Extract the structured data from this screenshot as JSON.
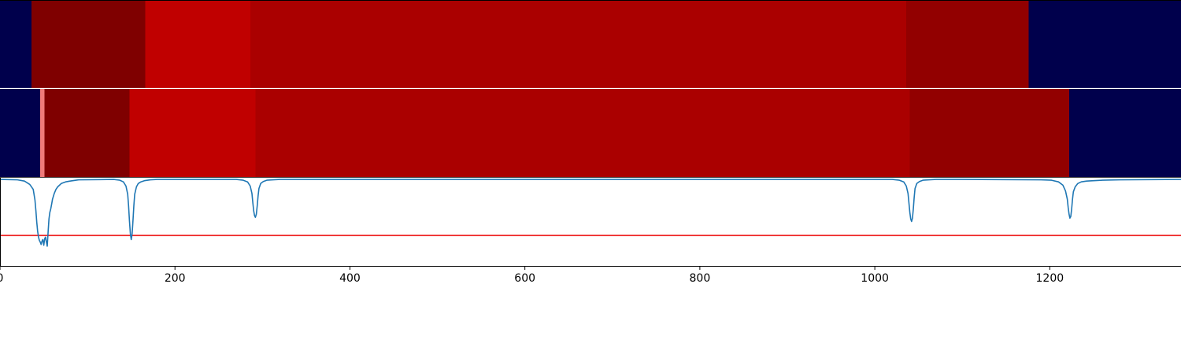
{
  "chart_data": [
    {
      "type": "heatmap",
      "segments": [
        {
          "x0": 0,
          "x1": 36,
          "color": "#00004c"
        },
        {
          "x0": 36,
          "x1": 166,
          "color": "#7f0000"
        },
        {
          "x0": 166,
          "x1": 286,
          "color": "#c00000"
        },
        {
          "x0": 286,
          "x1": 1036,
          "color": "#aa0000"
        },
        {
          "x0": 1036,
          "x1": 1176,
          "color": "#920000"
        },
        {
          "x0": 1176,
          "x1": 1350,
          "color": "#00004c"
        }
      ]
    },
    {
      "type": "heatmap",
      "segments": [
        {
          "x0": 0,
          "x1": 46,
          "color": "#00004c"
        },
        {
          "x0": 46,
          "x1": 51,
          "color": "#ef7b7b"
        },
        {
          "x0": 51,
          "x1": 148,
          "color": "#7f0000"
        },
        {
          "x0": 148,
          "x1": 292,
          "color": "#c00000"
        },
        {
          "x0": 292,
          "x1": 1040,
          "color": "#aa0000"
        },
        {
          "x0": 1040,
          "x1": 1222,
          "color": "#920000"
        },
        {
          "x0": 1222,
          "x1": 1350,
          "color": "#00004c"
        }
      ]
    },
    {
      "type": "line",
      "xlim": [
        0,
        1350
      ],
      "ylim": [
        -1.05,
        0.02
      ],
      "threshold": -0.68,
      "xticks": [
        0,
        200,
        400,
        600,
        800,
        1000,
        1200
      ],
      "xtick_labels": [
        "0",
        "200",
        "400",
        "600",
        "800",
        "1000",
        "1200"
      ],
      "series": [
        {
          "color": "#1f77b4",
          "x": [
            0,
            20,
            28,
            34,
            38,
            40,
            41,
            42,
            43,
            44,
            45,
            46,
            47,
            48,
            49,
            50,
            51,
            52,
            53,
            54,
            55,
            56,
            57,
            58,
            59,
            60,
            62,
            64,
            66,
            70,
            75,
            80,
            90,
            130,
            137,
            141,
            144,
            146,
            147,
            148,
            149,
            150,
            151,
            152,
            153,
            154,
            156,
            158,
            161,
            165,
            172,
            180,
            200,
            270,
            278,
            283,
            286,
            288,
            289,
            290,
            291,
            292,
            293,
            294,
            295,
            296,
            298,
            301,
            305,
            312,
            320,
            340,
            1020,
            1028,
            1033,
            1036,
            1038,
            1039,
            1040,
            1041,
            1042,
            1043,
            1044,
            1045,
            1046,
            1048,
            1051,
            1055,
            1062,
            1070,
            1100,
            1190,
            1202,
            1210,
            1215,
            1218,
            1220,
            1221,
            1222,
            1223,
            1224,
            1225,
            1226,
            1227,
            1229,
            1232,
            1236,
            1242,
            1250,
            1260,
            1280,
            1350
          ],
          "y": [
            0,
            -0.005,
            -0.02,
            -0.06,
            -0.12,
            -0.25,
            -0.38,
            -0.52,
            -0.63,
            -0.7,
            -0.74,
            -0.76,
            -0.79,
            -0.75,
            -0.73,
            -0.8,
            -0.72,
            -0.7,
            -0.76,
            -0.81,
            -0.64,
            -0.48,
            -0.4,
            -0.36,
            -0.3,
            -0.24,
            -0.17,
            -0.12,
            -0.09,
            -0.05,
            -0.03,
            -0.02,
            -0.005,
            0,
            -0.01,
            -0.03,
            -0.08,
            -0.18,
            -0.32,
            -0.5,
            -0.66,
            -0.73,
            -0.66,
            -0.5,
            -0.32,
            -0.18,
            -0.09,
            -0.05,
            -0.03,
            -0.015,
            -0.005,
            0,
            0,
            0,
            -0.01,
            -0.03,
            -0.08,
            -0.17,
            -0.28,
            -0.38,
            -0.44,
            -0.46,
            -0.42,
            -0.32,
            -0.2,
            -0.11,
            -0.05,
            -0.025,
            -0.01,
            -0.005,
            0,
            0,
            0,
            -0.01,
            -0.03,
            -0.08,
            -0.17,
            -0.28,
            -0.4,
            -0.48,
            -0.51,
            -0.47,
            -0.36,
            -0.22,
            -0.11,
            -0.05,
            -0.025,
            -0.01,
            -0.005,
            0,
            0,
            -0.005,
            -0.01,
            -0.03,
            -0.07,
            -0.14,
            -0.24,
            -0.34,
            -0.42,
            -0.47,
            -0.45,
            -0.36,
            -0.24,
            -0.15,
            -0.09,
            -0.05,
            -0.03,
            -0.02,
            -0.015,
            -0.01,
            -0.005,
            0
          ]
        }
      ]
    }
  ]
}
